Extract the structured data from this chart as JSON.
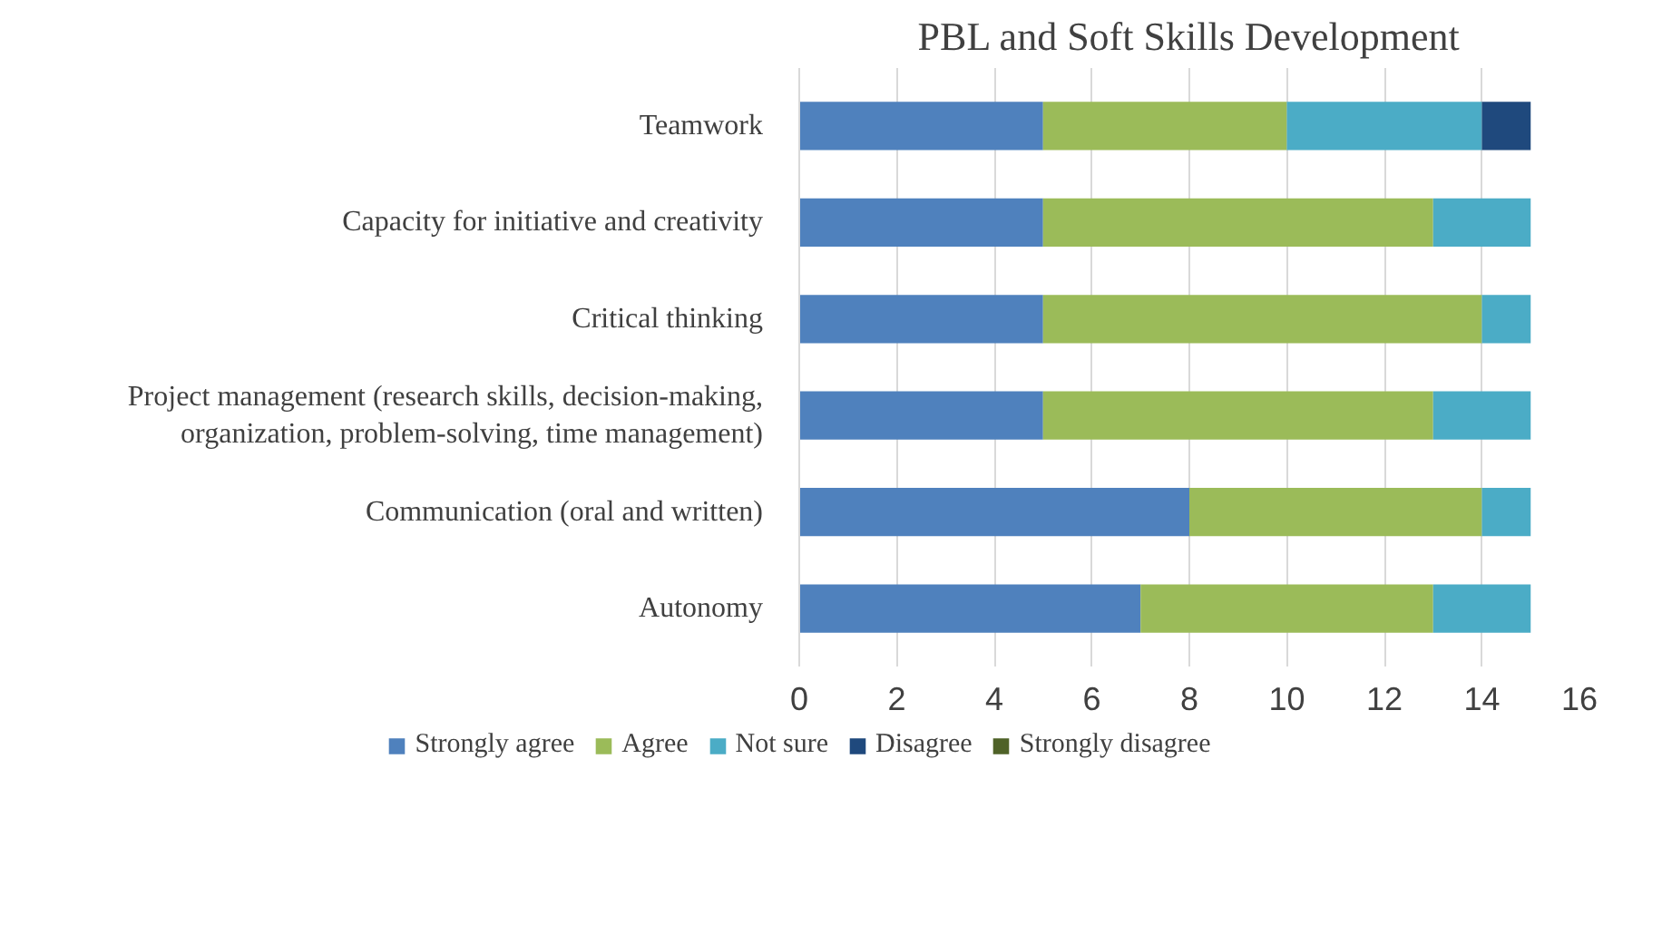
{
  "chart_data": {
    "type": "bar",
    "orientation": "horizontal",
    "stacked": true,
    "title": "PBL and Soft Skills Development",
    "categories": [
      "Teamwork",
      "Capacity for initiative and creativity",
      "Critical thinking",
      "Project management (research skills, decision-making, organization, problem-solving, time management)",
      "Communication (oral and written)",
      "Autonomy"
    ],
    "series": [
      {
        "name": "Strongly agree",
        "color": "#4f81bd",
        "values": [
          5,
          5,
          5,
          5,
          8,
          7
        ]
      },
      {
        "name": "Agree",
        "color": "#9bbb59",
        "values": [
          5,
          8,
          9,
          8,
          6,
          6
        ]
      },
      {
        "name": "Not sure",
        "color": "#4bacc6",
        "values": [
          4,
          2,
          1,
          2,
          1,
          2
        ]
      },
      {
        "name": "Disagree",
        "color": "#1f497d",
        "values": [
          1,
          0,
          0,
          0,
          0,
          0
        ]
      },
      {
        "name": "Strongly disagree",
        "color": "#4f6228",
        "values": [
          0,
          0,
          0,
          0,
          0,
          0
        ]
      }
    ],
    "xlim": [
      0,
      16
    ],
    "xticks": [
      0,
      2,
      4,
      6,
      8,
      10,
      12,
      14,
      16
    ],
    "grid": "x",
    "legend": "bottom"
  }
}
